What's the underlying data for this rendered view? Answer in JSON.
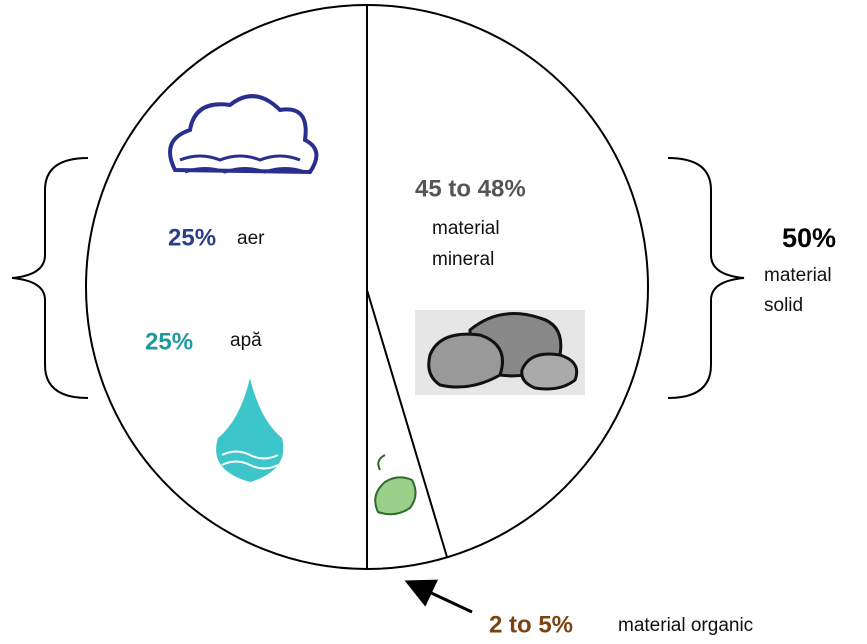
{
  "sections": [
    {
      "percent": "25%",
      "label": "aer"
    },
    {
      "percent": "25%",
      "label": "apă"
    },
    {
      "percent": "45 to 48%",
      "label_lines": [
        "material",
        "mineral"
      ]
    },
    {
      "percent": "2 to 5%",
      "label": "material organic"
    }
  ],
  "solid": {
    "percent": "50%",
    "label_lines": [
      "material",
      "solid"
    ]
  }
}
